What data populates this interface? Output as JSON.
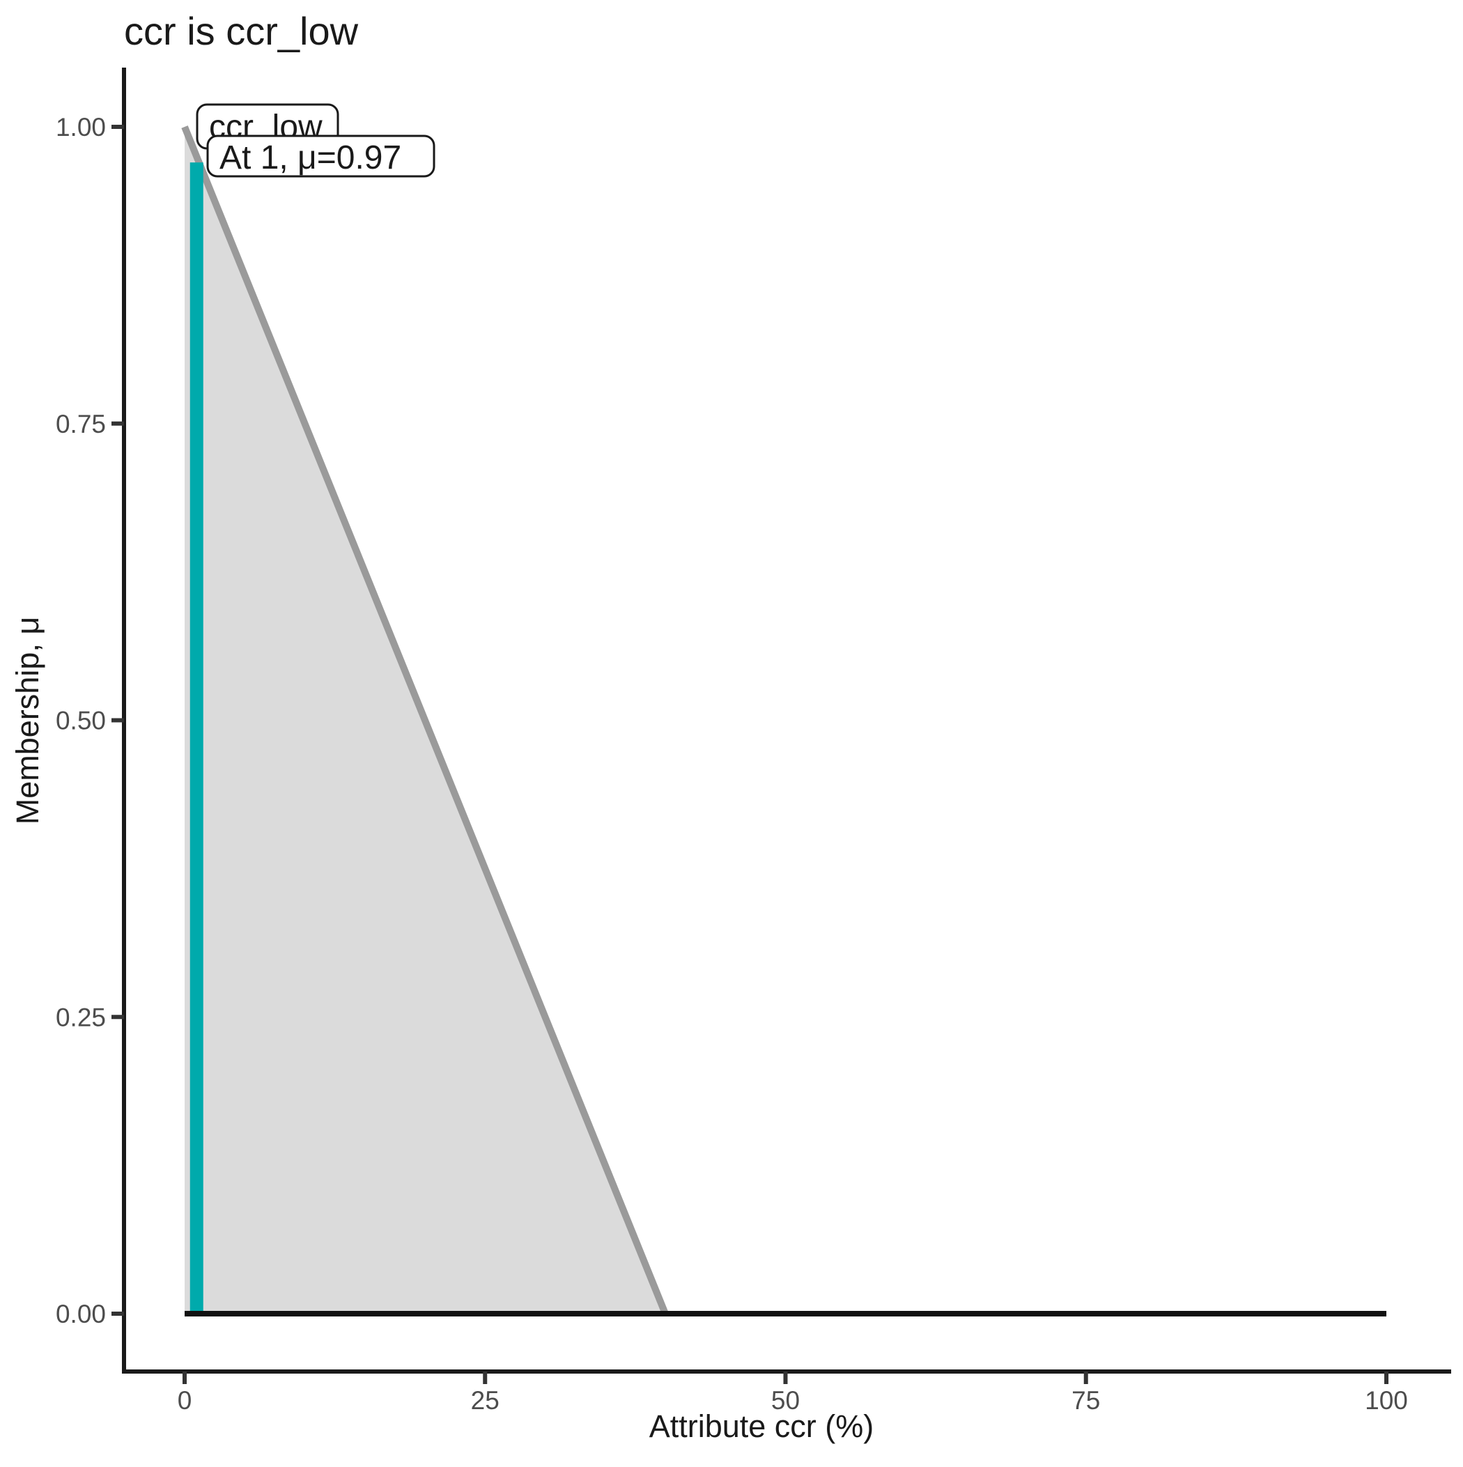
{
  "title": "ccr is ccr_low",
  "chart_data": {
    "type": "area",
    "title": "ccr is ccr_low",
    "xlabel": "Attribute ccr (%)",
    "ylabel": "Membership, μ",
    "xlim": [
      0,
      100
    ],
    "ylim": [
      0.0,
      1.0
    ],
    "grid": false,
    "legend": "none",
    "x_ticks": [
      {
        "value": 0,
        "label": "0"
      },
      {
        "value": 25,
        "label": "25"
      },
      {
        "value": 50,
        "label": "50"
      },
      {
        "value": 75,
        "label": "75"
      },
      {
        "value": 100,
        "label": "100"
      }
    ],
    "y_ticks": [
      {
        "value": 0.0,
        "label": "0.00"
      },
      {
        "value": 0.25,
        "label": "0.25"
      },
      {
        "value": 0.5,
        "label": "0.50"
      },
      {
        "value": 0.75,
        "label": "0.75"
      },
      {
        "value": 1.0,
        "label": "1.00"
      }
    ],
    "series": [
      {
        "name": "ccr_low-membership-area",
        "type": "area",
        "points": [
          [
            0,
            1.0
          ],
          [
            40,
            0.0
          ],
          [
            0,
            0.0
          ]
        ],
        "fill": "#dbdbdb"
      },
      {
        "name": "ccr_low-membership-boundary",
        "type": "line",
        "points": [
          [
            0,
            1.0
          ],
          [
            40,
            0.0
          ]
        ],
        "color": "#9a9a9a",
        "width": 10
      },
      {
        "name": "input-value-line",
        "type": "line",
        "points": [
          [
            1,
            0.0
          ],
          [
            1,
            0.97
          ]
        ],
        "color": "#00aaac",
        "width": 19
      },
      {
        "name": "zero-membership-baseline",
        "type": "line",
        "points": [
          [
            0,
            0.0
          ],
          [
            100,
            0.0
          ]
        ],
        "color": "#111111",
        "width": 8
      }
    ],
    "annotations": [
      {
        "text": "ccr_low",
        "x": 1,
        "mu": 1.0
      },
      {
        "text": "At 1, μ=0.97",
        "x": 1,
        "mu": 0.97
      }
    ]
  },
  "colors": {
    "background": "#ffffff",
    "axis": "#1a1a1a",
    "tick": "#333333",
    "tick_label": "#4d4d4d",
    "fuzzy_set_fill": "#dbdbdb",
    "fuzzy_set_line": "#9a9a9a",
    "input_line": "#00aaac",
    "baseline": "#111111"
  }
}
